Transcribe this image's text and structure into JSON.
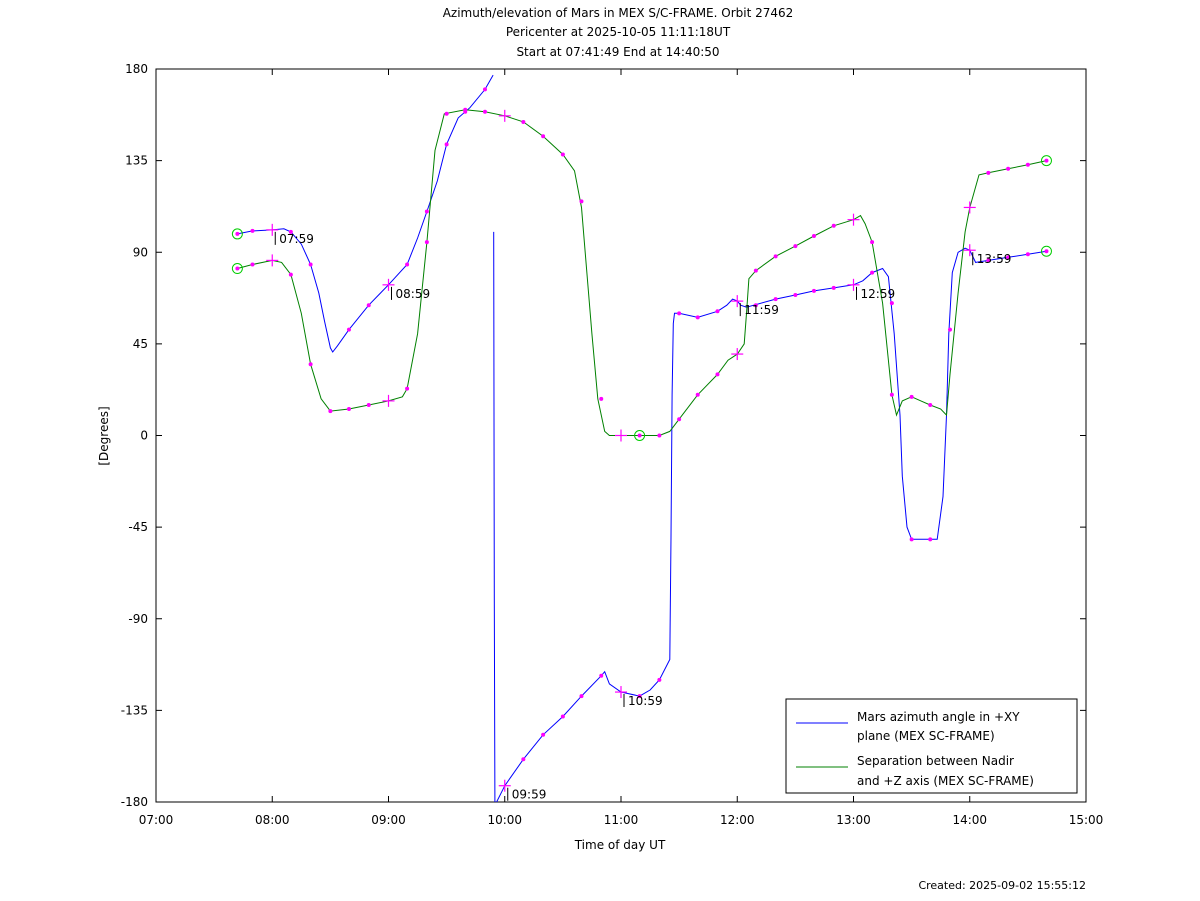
{
  "chart_data": {
    "type": "line",
    "title_lines": [
      "Azimuth/elevation of Mars in MEX S/C-FRAME.  Orbit 27462",
      "Pericenter at 2025-10-05 11:11:18UT",
      "Start at 07:41:49 End at 14:40:50"
    ],
    "xlabel": "Time of day UT",
    "ylabel": "[Degrees]",
    "xlim": [
      7.0,
      15.0
    ],
    "ylim": [
      -180,
      180
    ],
    "x_ticks": [
      7,
      8,
      9,
      10,
      11,
      12,
      13,
      14,
      15
    ],
    "x_tick_labels": [
      "07:00",
      "08:00",
      "09:00",
      "10:00",
      "11:00",
      "12:00",
      "13:00",
      "14:00",
      "15:00"
    ],
    "y_ticks": [
      -180,
      -135,
      -90,
      -45,
      0,
      45,
      90,
      135,
      180
    ],
    "y_tick_labels": [
      "-180",
      "-135",
      "-90",
      "-45",
      "0",
      "45",
      "90",
      "135",
      "180"
    ],
    "grid": false,
    "legend_position": "bottom-right",
    "series": [
      {
        "name": "Mars azimuth angle in +XY plane (MEX SC-FRAME)",
        "legend_lines": [
          "Mars azimuth angle in +XY",
          "plane (MEX SC-FRAME)"
        ],
        "color": "#0000ff",
        "segments": [
          [
            [
              7.7,
              99
            ],
            [
              7.83,
              100.5
            ],
            [
              8.0,
              101
            ],
            [
              8.1,
              101.5
            ],
            [
              8.16,
              100
            ],
            [
              8.25,
              94
            ],
            [
              8.33,
              84
            ],
            [
              8.4,
              70
            ],
            [
              8.45,
              56
            ],
            [
              8.5,
              43
            ],
            [
              8.52,
              41
            ],
            [
              8.56,
              44
            ],
            [
              8.66,
              52
            ],
            [
              8.83,
              64
            ],
            [
              9.0,
              74
            ],
            [
              9.16,
              84
            ],
            [
              9.25,
              97
            ],
            [
              9.33,
              110
            ],
            [
              9.42,
              125
            ],
            [
              9.5,
              143
            ],
            [
              9.6,
              156
            ],
            [
              9.7,
              161
            ],
            [
              9.83,
              170
            ],
            [
              9.9,
              177
            ]
          ],
          [
            [
              9.905,
              100
            ],
            [
              9.91,
              -80
            ],
            [
              9.915,
              -180
            ]
          ],
          [
            [
              9.93,
              -180
            ],
            [
              10.0,
              -172
            ],
            [
              10.16,
              -159
            ],
            [
              10.33,
              -147
            ],
            [
              10.5,
              -138
            ],
            [
              10.66,
              -128
            ],
            [
              10.83,
              -118
            ],
            [
              10.86,
              -116
            ],
            [
              10.9,
              -122
            ],
            [
              11.0,
              -126
            ],
            [
              11.16,
              -128
            ],
            [
              11.25,
              -125
            ],
            [
              11.33,
              -120
            ],
            [
              11.42,
              -110
            ],
            [
              11.43,
              -50
            ],
            [
              11.44,
              20
            ],
            [
              11.45,
              55
            ],
            [
              11.46,
              60
            ],
            [
              11.5,
              60
            ],
            [
              11.66,
              58
            ],
            [
              11.83,
              61
            ],
            [
              11.91,
              64
            ],
            [
              11.96,
              67
            ],
            [
              12.0,
              66
            ],
            [
              12.03,
              64
            ],
            [
              12.08,
              63
            ],
            [
              12.33,
              67
            ],
            [
              12.5,
              69
            ],
            [
              12.66,
              71
            ],
            [
              12.83,
              72.5
            ],
            [
              13.0,
              74
            ],
            [
              13.08,
              76
            ],
            [
              13.16,
              80
            ],
            [
              13.25,
              82
            ],
            [
              13.3,
              78
            ],
            [
              13.35,
              50
            ],
            [
              13.4,
              10
            ],
            [
              13.42,
              -20
            ],
            [
              13.46,
              -45
            ],
            [
              13.5,
              -51
            ],
            [
              13.58,
              -51
            ],
            [
              13.66,
              -51
            ],
            [
              13.72,
              -51
            ],
            [
              13.77,
              -30
            ],
            [
              13.8,
              10
            ],
            [
              13.82,
              50
            ],
            [
              13.85,
              80
            ],
            [
              13.9,
              90
            ],
            [
              13.96,
              92
            ],
            [
              14.0,
              91
            ],
            [
              14.05,
              85
            ],
            [
              14.16,
              86
            ],
            [
              14.33,
              87.5
            ],
            [
              14.5,
              89
            ],
            [
              14.66,
              90.5
            ]
          ]
        ],
        "markers": [
          [
            7.83,
            100.5
          ],
          [
            8.16,
            100
          ],
          [
            8.33,
            84
          ],
          [
            8.66,
            52
          ],
          [
            8.83,
            64
          ],
          [
            9.16,
            84
          ],
          [
            9.33,
            110
          ],
          [
            9.5,
            143
          ],
          [
            9.66,
            159
          ],
          [
            9.83,
            170
          ],
          [
            10.16,
            -159
          ],
          [
            10.33,
            -147
          ],
          [
            10.5,
            -138
          ],
          [
            10.66,
            -128
          ],
          [
            10.83,
            -118
          ],
          [
            11.16,
            -128
          ],
          [
            11.33,
            -120
          ],
          [
            11.5,
            60
          ],
          [
            11.66,
            58
          ],
          [
            11.83,
            61
          ],
          [
            12.16,
            64
          ],
          [
            12.33,
            67
          ],
          [
            12.5,
            69
          ],
          [
            12.66,
            71
          ],
          [
            12.83,
            72.5
          ],
          [
            13.16,
            80
          ],
          [
            13.33,
            65
          ],
          [
            13.5,
            -51
          ],
          [
            13.66,
            -51
          ],
          [
            14.16,
            86
          ],
          [
            14.33,
            87.5
          ],
          [
            14.5,
            89
          ]
        ],
        "hour_marks": [
          [
            8.0,
            101
          ],
          [
            9.0,
            74
          ],
          [
            10.0,
            -172
          ],
          [
            11.0,
            -126
          ],
          [
            12.0,
            66
          ],
          [
            13.0,
            74
          ],
          [
            14.0,
            91
          ]
        ],
        "circles": [
          [
            7.7,
            99
          ],
          [
            14.66,
            90.5
          ]
        ]
      },
      {
        "name": "Separation between Nadir and +Z axis (MEX SC-FRAME)",
        "legend_lines": [
          "Separation between Nadir",
          "and +Z axis (MEX SC-FRAME)"
        ],
        "color": "#008000",
        "segments": [
          [
            [
              7.7,
              82
            ],
            [
              7.83,
              84
            ],
            [
              8.0,
              86
            ],
            [
              8.08,
              85
            ],
            [
              8.16,
              79
            ],
            [
              8.25,
              60
            ],
            [
              8.33,
              35
            ],
            [
              8.42,
              18
            ],
            [
              8.5,
              12
            ],
            [
              8.66,
              13
            ],
            [
              8.83,
              15
            ],
            [
              9.0,
              17
            ],
            [
              9.12,
              19
            ],
            [
              9.16,
              23
            ],
            [
              9.25,
              50
            ],
            [
              9.33,
              95
            ],
            [
              9.4,
              140
            ],
            [
              9.48,
              158
            ],
            [
              9.66,
              160
            ],
            [
              9.83,
              159
            ],
            [
              10.0,
              157
            ],
            [
              10.16,
              154
            ],
            [
              10.33,
              147
            ],
            [
              10.5,
              138
            ],
            [
              10.6,
              130
            ],
            [
              10.66,
              112
            ],
            [
              10.75,
              50
            ],
            [
              10.8,
              18
            ],
            [
              10.86,
              2
            ],
            [
              10.9,
              0
            ],
            [
              11.0,
              0
            ],
            [
              11.16,
              0
            ],
            [
              11.33,
              0
            ],
            [
              11.42,
              2
            ],
            [
              11.5,
              8
            ],
            [
              11.66,
              20
            ],
            [
              11.83,
              30
            ],
            [
              11.92,
              37
            ],
            [
              12.0,
              40
            ],
            [
              12.06,
              45
            ],
            [
              12.08,
              60
            ],
            [
              12.1,
              77
            ],
            [
              12.16,
              81
            ],
            [
              12.33,
              88
            ],
            [
              12.5,
              93
            ],
            [
              12.66,
              98
            ],
            [
              12.83,
              103
            ],
            [
              13.0,
              106
            ],
            [
              13.06,
              108
            ],
            [
              13.1,
              104
            ],
            [
              13.16,
              95
            ],
            [
              13.25,
              65
            ],
            [
              13.33,
              20
            ],
            [
              13.37,
              10
            ],
            [
              13.42,
              17
            ],
            [
              13.5,
              19
            ],
            [
              13.58,
              17
            ],
            [
              13.66,
              15
            ],
            [
              13.75,
              13
            ],
            [
              13.8,
              10
            ],
            [
              13.83,
              30
            ],
            [
              13.9,
              70
            ],
            [
              13.96,
              100
            ],
            [
              14.0,
              112
            ],
            [
              14.08,
              128
            ],
            [
              14.16,
              129
            ],
            [
              14.33,
              131
            ],
            [
              14.5,
              133
            ],
            [
              14.66,
              135
            ]
          ]
        ],
        "markers": [
          [
            7.83,
            84
          ],
          [
            8.16,
            79
          ],
          [
            8.33,
            35
          ],
          [
            8.5,
            12
          ],
          [
            8.66,
            13
          ],
          [
            8.83,
            15
          ],
          [
            9.16,
            23
          ],
          [
            9.33,
            95
          ],
          [
            9.5,
            158
          ],
          [
            9.66,
            160
          ],
          [
            9.83,
            159
          ],
          [
            10.16,
            154
          ],
          [
            10.33,
            147
          ],
          [
            10.5,
            138
          ],
          [
            10.66,
            115
          ],
          [
            10.83,
            18
          ],
          [
            11.33,
            0
          ],
          [
            11.5,
            8
          ],
          [
            11.66,
            20
          ],
          [
            11.83,
            30
          ],
          [
            12.16,
            81
          ],
          [
            12.33,
            88
          ],
          [
            12.5,
            93
          ],
          [
            12.66,
            98
          ],
          [
            12.83,
            103
          ],
          [
            13.16,
            95
          ],
          [
            13.33,
            20
          ],
          [
            13.5,
            19
          ],
          [
            13.66,
            15
          ],
          [
            13.83,
            52
          ],
          [
            14.16,
            129
          ],
          [
            14.33,
            131
          ],
          [
            14.5,
            133
          ]
        ],
        "hour_marks": [
          [
            8.0,
            86
          ],
          [
            9.0,
            17
          ],
          [
            10.0,
            157
          ],
          [
            11.0,
            0
          ],
          [
            12.0,
            40
          ],
          [
            13.0,
            106
          ],
          [
            14.0,
            112
          ]
        ],
        "circles": [
          [
            7.7,
            82
          ],
          [
            11.16,
            0
          ],
          [
            14.66,
            135
          ]
        ]
      }
    ],
    "time_annotations": [
      {
        "x": 8.0,
        "y": 101,
        "label": "07:59"
      },
      {
        "x": 9.0,
        "y": 74,
        "label": "08:59"
      },
      {
        "x": 10.0,
        "y": -172,
        "label": "09:59"
      },
      {
        "x": 11.0,
        "y": -126,
        "label": "10:59"
      },
      {
        "x": 12.0,
        "y": 66,
        "label": "11:59"
      },
      {
        "x": 13.0,
        "y": 74,
        "label": "12:59"
      },
      {
        "x": 14.0,
        "y": 91,
        "label": "13:59"
      }
    ],
    "marker_color": "#ff00ff",
    "created": "Created: 2025-09-02 15:55:12"
  }
}
